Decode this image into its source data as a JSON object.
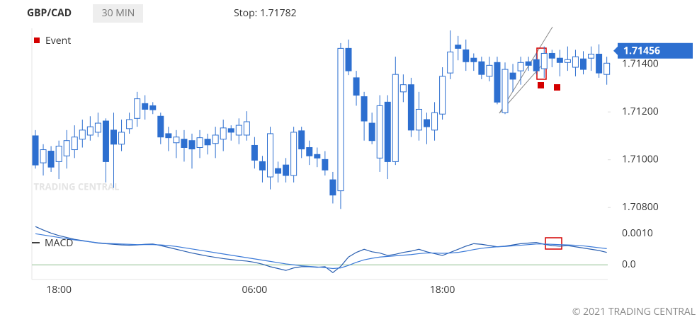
{
  "header": {
    "symbol": "GBP/CAD",
    "timeframe": "30 MIN",
    "stop": "Stop: 1.71782"
  },
  "event_legend": "Event",
  "watermark": "TRADING CENTRAL",
  "footer": "© 2021 TRADING CENTRAL",
  "chart_data": [
    {
      "type": "candlestick",
      "color": "#2d6fd0",
      "categories": [
        null,
        null,
        null,
        "18:00",
        null,
        null,
        null,
        null,
        null,
        null,
        null,
        null,
        null,
        null,
        null,
        null,
        null,
        null,
        null,
        null,
        null,
        null,
        null,
        null,
        null,
        null,
        null,
        null,
        "06:00",
        null,
        null,
        null,
        null,
        null,
        null,
        null,
        null,
        null,
        null,
        null,
        null,
        null,
        null,
        null,
        null,
        null,
        null,
        null,
        null,
        null,
        null,
        null,
        "18:00",
        null,
        null,
        null,
        null,
        null,
        null,
        null,
        null,
        null,
        null,
        null,
        null,
        null,
        null,
        null,
        null,
        null,
        null,
        null,
        null,
        null
      ],
      "open": [
        1.711,
        1.70987,
        1.71036,
        1.70992,
        1.71016,
        1.71042,
        1.71086,
        1.71103,
        1.71115,
        1.71162,
        1.71124,
        1.71065,
        1.7113,
        1.71173,
        1.71235,
        1.71226,
        1.71182,
        1.71109,
        1.71071,
        1.71086,
        1.7108,
        1.71051,
        1.71086,
        1.71068,
        1.71086,
        1.7113,
        1.71103,
        1.71103,
        1.7106,
        1.70992,
        1.70928,
        1.70963,
        1.70978,
        1.70934,
        1.71121,
        1.71051,
        1.71022,
        1.71001,
        1.70916,
        1.7087,
        1.71466,
        1.71343,
        1.71264,
        1.71153,
        1.71007,
        1.71241,
        1.70992,
        1.71284,
        1.71314,
        1.71124,
        1.71168,
        1.71124,
        1.71191,
        1.71363,
        1.7148,
        1.7146,
        1.71425,
        1.7141,
        1.71349,
        1.71407,
        1.71197,
        1.71363,
        1.71372,
        1.7141,
        1.71419,
        1.71381,
        1.71445,
        1.71425,
        1.71407,
        1.71387,
        1.71422,
        1.71425,
        1.71442,
        1.71357
      ],
      "high": [
        1.71124,
        1.71065,
        1.71057,
        1.7108,
        1.71124,
        1.71144,
        1.71168,
        1.71182,
        1.71197,
        1.71173,
        1.71197,
        1.71168,
        1.71197,
        1.71284,
        1.7127,
        1.71241,
        1.71197,
        1.71138,
        1.71124,
        1.71124,
        1.71109,
        1.71124,
        1.71109,
        1.71138,
        1.71168,
        1.71144,
        1.71173,
        1.71203,
        1.71095,
        1.71016,
        1.71138,
        1.70992,
        1.71007,
        1.71138,
        1.71138,
        1.7108,
        1.71051,
        1.71036,
        1.70949,
        1.71488,
        1.71503,
        1.71372,
        1.71284,
        1.71197,
        1.7127,
        1.7127,
        1.71431,
        1.71357,
        1.71343,
        1.71284,
        1.71197,
        1.71241,
        1.71387,
        1.71541,
        1.71518,
        1.71503,
        1.71445,
        1.71431,
        1.71431,
        1.71431,
        1.71407,
        1.71401,
        1.71431,
        1.71431,
        1.71445,
        1.71474,
        1.7146,
        1.7146,
        1.71474,
        1.7146,
        1.71454,
        1.71474,
        1.71483,
        1.71431
      ],
      "low": [
        1.70963,
        1.70934,
        1.70949,
        1.70919,
        1.70963,
        1.71007,
        1.71051,
        1.7108,
        1.71095,
        1.70905,
        1.70882,
        1.71036,
        1.71109,
        1.71138,
        1.71168,
        1.71191,
        1.71065,
        1.71036,
        1.71007,
        1.70992,
        1.70963,
        1.71007,
        1.71022,
        1.71007,
        1.71036,
        1.7108,
        1.71065,
        1.7108,
        1.70963,
        1.70905,
        1.70876,
        1.70905,
        1.70905,
        1.70905,
        1.71007,
        1.70978,
        1.70969,
        1.70934,
        1.70817,
        1.70794,
        1.71354,
        1.71226,
        1.7108,
        1.71065,
        1.70949,
        1.70919,
        1.70978,
        1.71241,
        1.71095,
        1.7108,
        1.71065,
        1.7108,
        1.71168,
        1.71337,
        1.71416,
        1.71372,
        1.71372,
        1.71337,
        1.71328,
        1.71232,
        1.71191,
        1.71284,
        1.71314,
        1.71372,
        1.71357,
        1.71343,
        1.71387,
        1.71349,
        1.71372,
        1.71349,
        1.71357,
        1.71372,
        1.71343,
        1.71314
      ],
      "close": [
        1.70978,
        1.71042,
        1.70969,
        1.71057,
        1.7108,
        1.71095,
        1.71124,
        1.71138,
        1.71153,
        1.70992,
        1.71065,
        1.71115,
        1.71168,
        1.71255,
        1.71211,
        1.71209,
        1.71095,
        1.71092,
        1.71095,
        1.71051,
        1.71045,
        1.71092,
        1.71062,
        1.71103,
        1.71133,
        1.71115,
        1.71144,
        1.71159,
        1.70998,
        1.70957,
        1.71109,
        1.70943,
        1.70934,
        1.71115,
        1.71045,
        1.71016,
        1.71007,
        1.70957,
        1.70852,
        1.71466,
        1.71372,
        1.7127,
        1.71162,
        1.7108,
        1.71226,
        1.70992,
        1.71357,
        1.71314,
        1.71124,
        1.71211,
        1.71138,
        1.71197,
        1.71349,
        1.71451,
        1.71466,
        1.7141,
        1.7141,
        1.71357,
        1.71395,
        1.71241,
        1.71378,
        1.71337,
        1.71407,
        1.71395,
        1.71372,
        1.71445,
        1.71425,
        1.71407,
        1.71419,
        1.71431,
        1.71378,
        1.71442,
        1.71363,
        1.71404
      ],
      "last_price": 1.71456,
      "ylim": [
        1.7078,
        1.7155
      ],
      "yticks": [
        {
          "value": 1.708,
          "label": "1.70800"
        },
        {
          "value": 1.71,
          "label": "1.71000"
        },
        {
          "value": 1.712,
          "label": "1.71200"
        },
        {
          "value": 1.714,
          "label": "1.71400"
        }
      ]
    },
    {
      "type": "line",
      "series": [
        {
          "name": "MACD",
          "color": "#2a5fb0",
          "values": [
            0.00123,
            0.00112,
            0.00102,
            0.00094,
            0.00088,
            0.00082,
            0.00078,
            0.00074,
            0.0007,
            0.00068,
            0.00066,
            0.00064,
            0.00063,
            0.00064,
            0.00066,
            0.00067,
            0.00062,
            0.00056,
            0.0005,
            0.00044,
            0.00038,
            0.00033,
            0.00028,
            0.00024,
            0.0002,
            0.00017,
            0.00014,
            0.00012,
            8e-05,
            2e-05,
            -6e-05,
            -0.00012,
            -0.00018,
            -0.0001,
            -6e-05,
            -6e-05,
            -8e-05,
            -6e-05,
            -0.00025,
            -5e-05,
            0.00025,
            0.0004,
            0.0005,
            0.00042,
            0.00038,
            0.0003,
            0.00034,
            0.0004,
            0.00044,
            0.0005,
            0.00042,
            0.00036,
            0.0003,
            0.0004,
            0.0005,
            0.0006,
            0.00068,
            0.00066,
            0.00062,
            0.00058,
            0.0006,
            0.00064,
            0.00068,
            0.0007,
            0.00072,
            0.00066,
            0.00062,
            0.0006,
            0.00062,
            0.00058,
            0.00054,
            0.0005,
            0.00046,
            0.0004
          ]
        },
        {
          "color": "#3b7ad8",
          "values": [
            0.001,
            0.00096,
            0.00092,
            0.00088,
            0.00084,
            0.0008,
            0.00077,
            0.00074,
            0.00071,
            0.00069,
            0.00068,
            0.00067,
            0.00066,
            0.00065,
            0.00065,
            0.00065,
            0.00064,
            0.00062,
            0.00059,
            0.00055,
            0.00051,
            0.00047,
            0.00043,
            0.00039,
            0.00035,
            0.00031,
            0.00027,
            0.00023,
            0.00019,
            0.00015,
            0.00011,
            7e-05,
            3e-05,
            0.0,
            -3e-05,
            -5e-05,
            -7e-05,
            -9e-05,
            -0.00012,
            -0.0001,
            -2e-05,
            8e-05,
            0.00016,
            0.00021,
            0.00025,
            0.00027,
            0.00029,
            0.00031,
            0.00033,
            0.00036,
            0.00038,
            0.00038,
            0.00037,
            0.00038,
            0.0004,
            0.00044,
            0.00049,
            0.00053,
            0.00056,
            0.00058,
            0.00059,
            0.00061,
            0.00063,
            0.00065,
            0.00067,
            0.00067,
            0.00066,
            0.00065,
            0.00064,
            0.00063,
            0.00061,
            0.00058,
            0.00055,
            0.00052
          ]
        }
      ],
      "zero_line_color": "#8fbf8f",
      "ylim": [
        -0.00045,
        0.00128
      ],
      "yticks": [
        {
          "value": 0,
          "label": "0.0"
        },
        {
          "value": 0.001,
          "label": "0.0010"
        }
      ]
    }
  ]
}
